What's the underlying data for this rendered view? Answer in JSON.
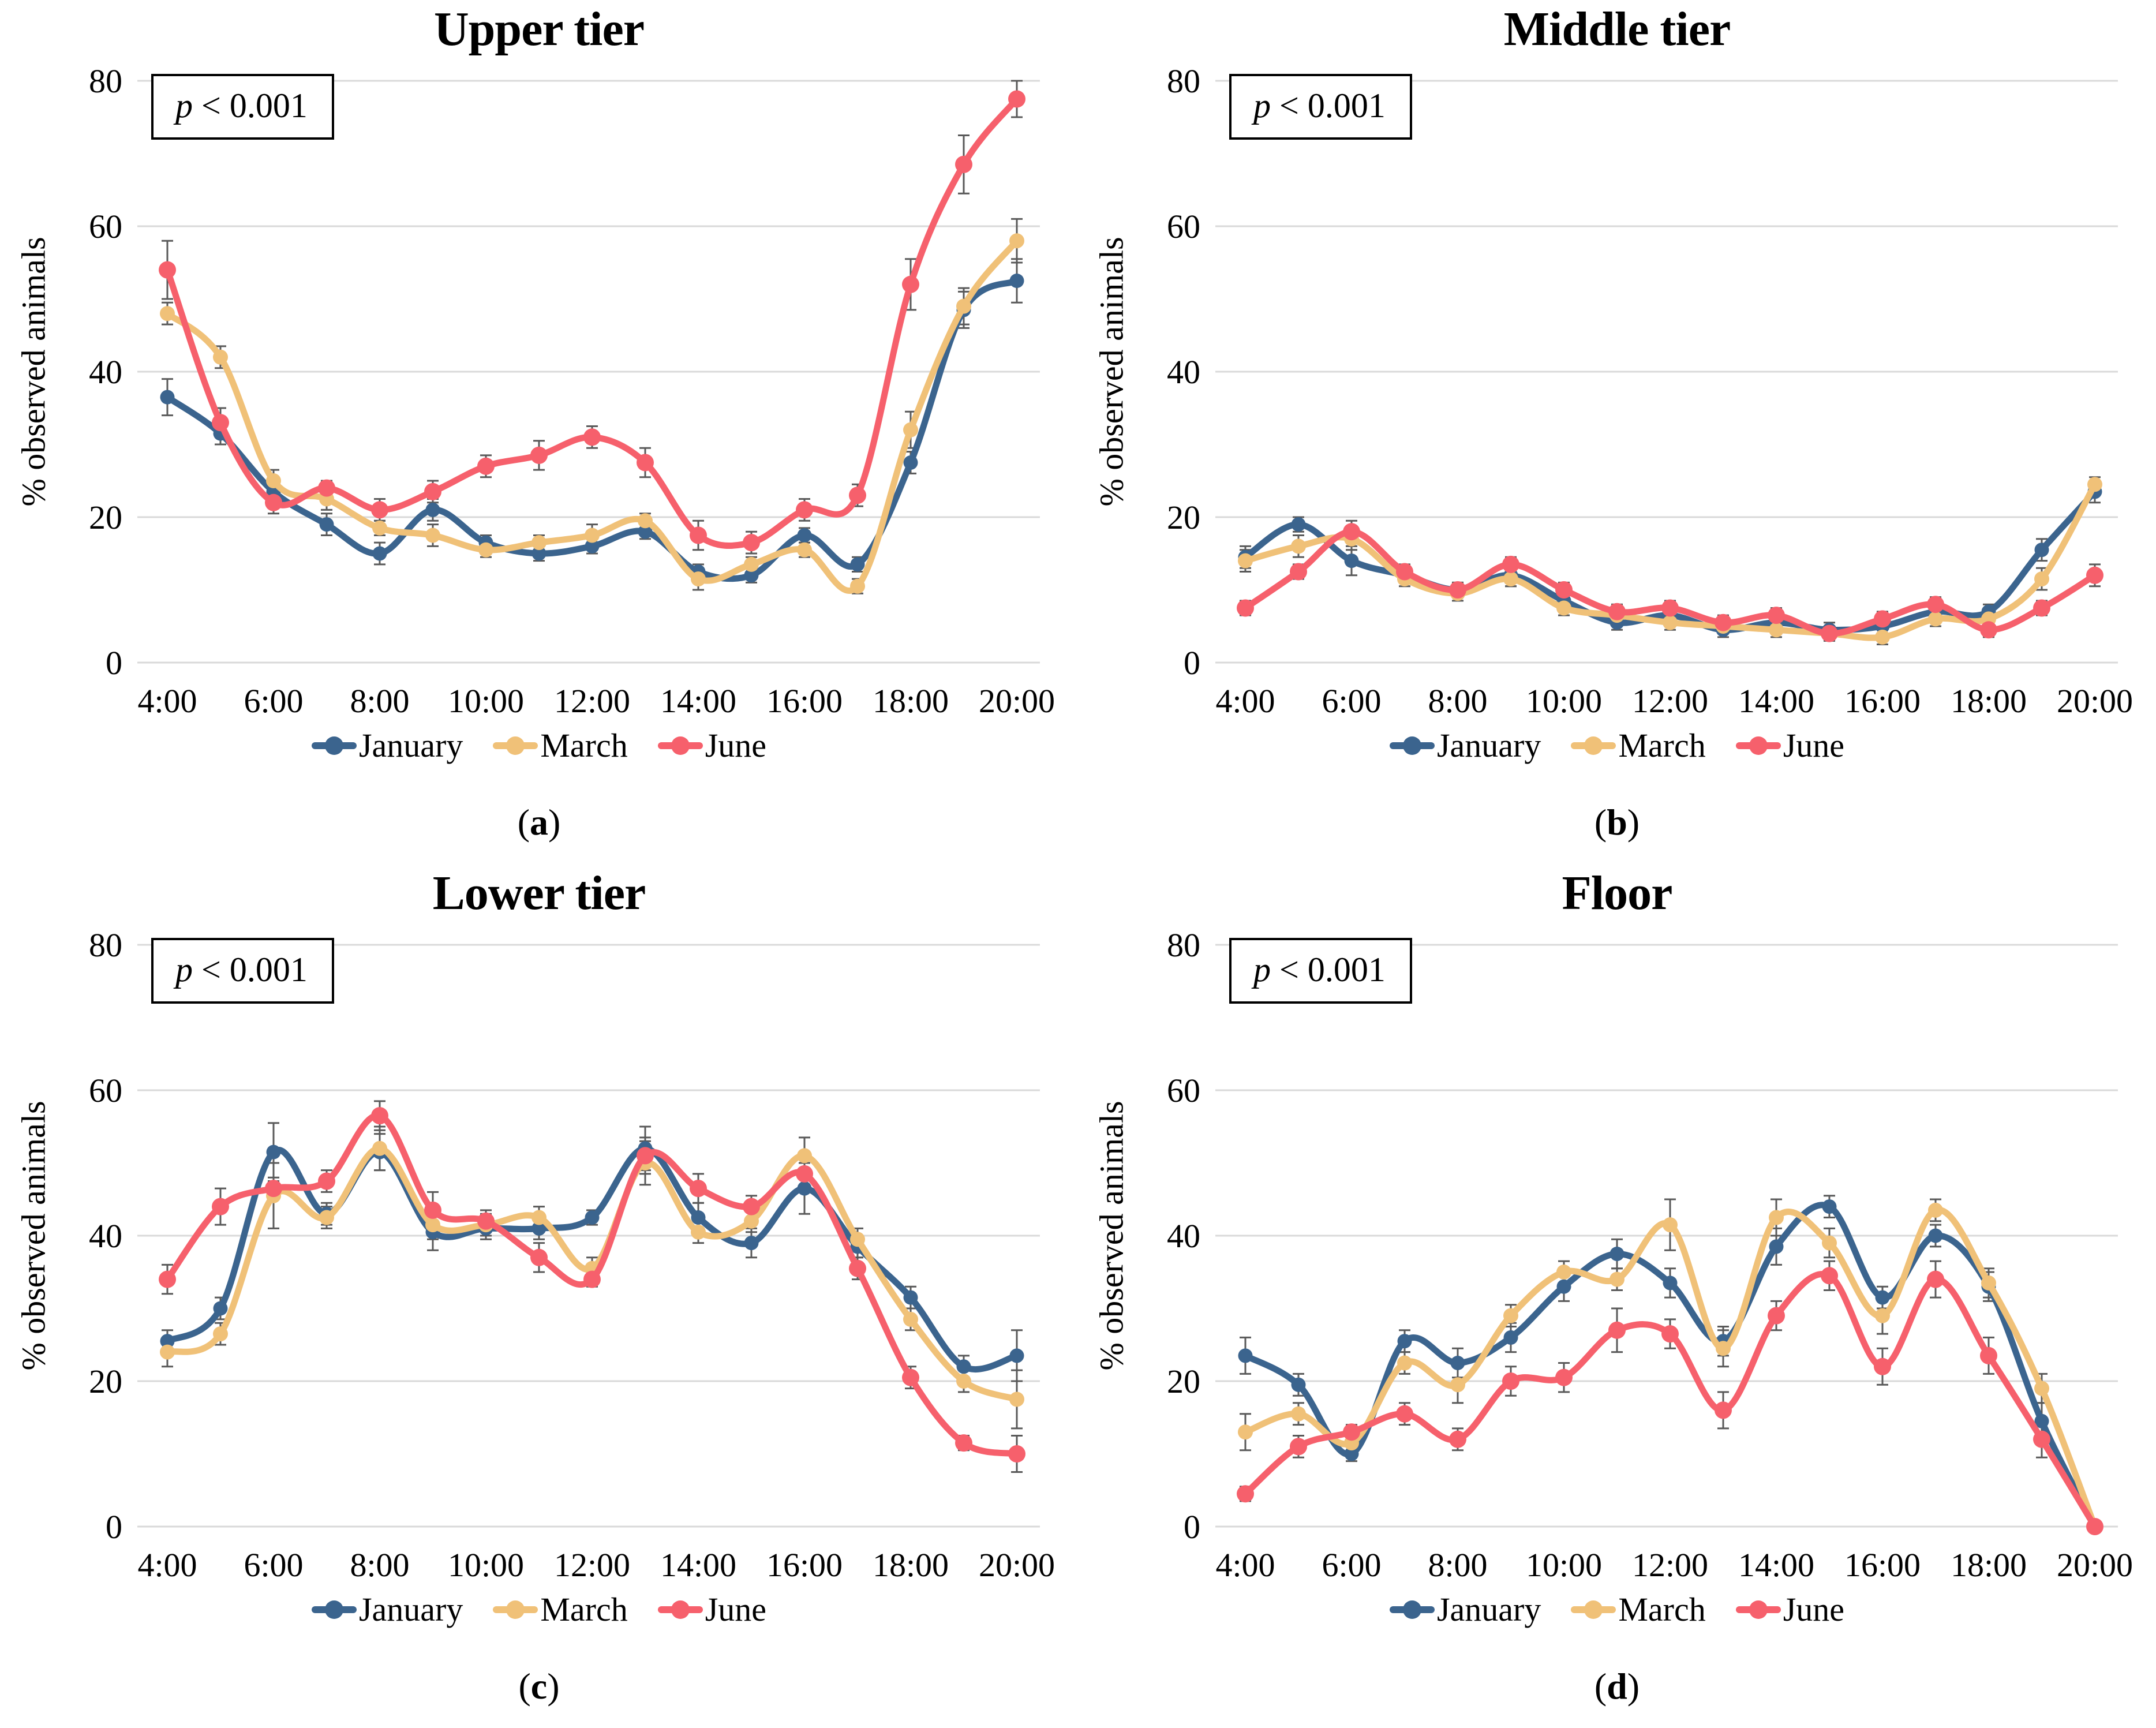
{
  "styles": {
    "background": "#ffffff",
    "grid_color": "#d9d9d9",
    "error_bar_color": "#595959",
    "text_color": "#000000",
    "january_color": "#3B648E",
    "march_color": "#F0C178",
    "june_color": "#F6606C"
  },
  "chart_data": [
    {
      "id": "a",
      "type": "line",
      "title": "Upper tier",
      "caption_open": "(",
      "caption_letter": "a",
      "caption_close": ")",
      "p_symbol": "p",
      "p_rest": " < 0.001",
      "ylabel": "% observed animals",
      "xlabel": "",
      "ylim": [
        0,
        80
      ],
      "y_ticks": [
        0,
        20,
        40,
        60,
        80
      ],
      "x_tick_labels": [
        "4:00",
        "6:00",
        "8:00",
        "10:00",
        "12:00",
        "14:00",
        "16:00",
        "18:00",
        "20:00"
      ],
      "hours": [
        4,
        5,
        6,
        7,
        8,
        9,
        10,
        11,
        12,
        13,
        14,
        15,
        16,
        17,
        18,
        19,
        20
      ],
      "grid": true,
      "legend_position": "bottom",
      "smooth": true,
      "series": [
        {
          "name": "January",
          "color": "#3B648E",
          "values": [
            36.5,
            31.5,
            23.5,
            19,
            15,
            21,
            16.5,
            15,
            16,
            18,
            12.5,
            12,
            17.5,
            13.5,
            27.5,
            48.5,
            52.5
          ],
          "errors": [
            2.5,
            1.5,
            1,
            1.5,
            1.5,
            1.5,
            1,
            1,
            1,
            1,
            1,
            1,
            1,
            1,
            1.5,
            2.5,
            3
          ]
        },
        {
          "name": "March",
          "color": "#F0C178",
          "values": [
            48,
            42,
            25,
            22.5,
            18.5,
            17.5,
            15.5,
            16.5,
            17.5,
            19.5,
            11.5,
            13.5,
            15.5,
            10.5,
            32,
            49,
            58
          ],
          "errors": [
            1.5,
            1.5,
            1.5,
            1.5,
            1,
            1.5,
            1,
            1,
            1.5,
            1,
            1.5,
            1,
            1,
            1,
            2.5,
            2.5,
            3
          ]
        },
        {
          "name": "June",
          "color": "#F6606C",
          "values": [
            54,
            33,
            22,
            24,
            21,
            23.5,
            27,
            28.5,
            31,
            27.5,
            17.5,
            16.5,
            21,
            23,
            52,
            68.5,
            77.5
          ],
          "errors": [
            4,
            2,
            1.5,
            1,
            1.5,
            1.5,
            1.5,
            2,
            1.5,
            2,
            2,
            1.5,
            1.5,
            1.5,
            3.5,
            4,
            2.5
          ]
        }
      ]
    },
    {
      "id": "b",
      "type": "line",
      "title": "Middle tier",
      "caption_open": "(",
      "caption_letter": "b",
      "caption_close": ")",
      "p_symbol": "p",
      "p_rest": " < 0.001",
      "ylabel": "% observed animals",
      "xlabel": "",
      "ylim": [
        0,
        80
      ],
      "y_ticks": [
        0,
        20,
        40,
        60,
        80
      ],
      "x_tick_labels": [
        "4:00",
        "6:00",
        "8:00",
        "10:00",
        "12:00",
        "14:00",
        "16:00",
        "18:00",
        "20:00"
      ],
      "hours": [
        4,
        5,
        6,
        7,
        8,
        9,
        10,
        11,
        12,
        13,
        14,
        15,
        16,
        17,
        18,
        19,
        20
      ],
      "grid": true,
      "legend_position": "bottom",
      "smooth": true,
      "series": [
        {
          "name": "January",
          "color": "#3B648E",
          "values": [
            14.5,
            19,
            14,
            12,
            10,
            12,
            8.5,
            5.5,
            6.5,
            4.5,
            5.5,
            4.5,
            5,
            7,
            7,
            15.5,
            23.5
          ],
          "errors": [
            1.5,
            1,
            2,
            1,
            1,
            1.5,
            1,
            1,
            1,
            1,
            1,
            1,
            1,
            1,
            1,
            1.5,
            1.5
          ]
        },
        {
          "name": "March",
          "color": "#F0C178",
          "values": [
            14,
            16,
            17,
            11.5,
            9.5,
            11.5,
            7.5,
            6.5,
            5.5,
            5,
            4.5,
            4,
            3.5,
            6,
            6,
            11.5,
            24.5
          ],
          "errors": [
            1.5,
            1.5,
            1.5,
            1,
            1,
            1,
            1,
            1,
            1,
            1,
            1,
            1,
            1,
            1,
            1,
            1.5,
            1
          ]
        },
        {
          "name": "June",
          "color": "#F6606C",
          "values": [
            7.5,
            12.5,
            18,
            12.5,
            10,
            13.5,
            10,
            7,
            7.5,
            5.5,
            6.5,
            4,
            6,
            8,
            4.5,
            7.5,
            12
          ],
          "errors": [
            1,
            1,
            1.5,
            1,
            1,
            1,
            1,
            1,
            1,
            1,
            1,
            1,
            1,
            1,
            1,
            1,
            1.5
          ]
        }
      ]
    },
    {
      "id": "c",
      "type": "line",
      "title": "Lower tier",
      "caption_open": "(",
      "caption_letter": "c",
      "caption_close": ")",
      "p_symbol": "p",
      "p_rest": " < 0.001",
      "ylabel": "% observed animals",
      "xlabel": "",
      "ylim": [
        0,
        80
      ],
      "y_ticks": [
        0,
        20,
        40,
        60,
        80
      ],
      "x_tick_labels": [
        "4:00",
        "6:00",
        "8:00",
        "10:00",
        "12:00",
        "14:00",
        "16:00",
        "18:00",
        "20:00"
      ],
      "hours": [
        4,
        5,
        6,
        7,
        8,
        9,
        10,
        11,
        12,
        13,
        14,
        15,
        16,
        17,
        18,
        19,
        20
      ],
      "grid": true,
      "legend_position": "bottom",
      "smooth": true,
      "series": [
        {
          "name": "January",
          "color": "#3B648E",
          "values": [
            25.5,
            30,
            51.5,
            43,
            51.5,
            40.5,
            41,
            41,
            42.5,
            52,
            42.5,
            39,
            46.5,
            38.5,
            31.5,
            22,
            23.5
          ],
          "errors": [
            1.5,
            1.5,
            4,
            1.5,
            2.5,
            2.5,
            1.5,
            1.5,
            1,
            3,
            2,
            2,
            3.5,
            1.5,
            1.5,
            1.5,
            3.5
          ]
        },
        {
          "name": "March",
          "color": "#F0C178",
          "values": [
            24,
            26.5,
            45.5,
            42.5,
            52,
            41.5,
            41.5,
            42.5,
            35.5,
            50,
            40.5,
            42,
            51,
            39.5,
            28.5,
            20,
            17.5
          ],
          "errors": [
            2,
            1.5,
            4.5,
            1.5,
            3,
            2,
            1.5,
            1.5,
            1.5,
            3,
            1.5,
            1.5,
            2.5,
            1.5,
            1.5,
            1.5,
            4
          ]
        },
        {
          "name": "June",
          "color": "#F6606C",
          "values": [
            34,
            44,
            46.5,
            47.5,
            56.5,
            43.5,
            42,
            37,
            34,
            51,
            46.5,
            44,
            48.5,
            35.5,
            20.5,
            11.5,
            10
          ],
          "errors": [
            2,
            2.5,
            1.5,
            1.5,
            2,
            2.5,
            1.5,
            2,
            1,
            2.5,
            2,
            1.5,
            2.5,
            1.5,
            1.5,
            1,
            2.5
          ]
        }
      ]
    },
    {
      "id": "d",
      "type": "line",
      "title": "Floor",
      "caption_open": "(",
      "caption_letter": "d",
      "caption_close": ")",
      "p_symbol": "p",
      "p_rest": " < 0.001",
      "ylabel": "% observed animals",
      "xlabel": "",
      "ylim": [
        0,
        80
      ],
      "y_ticks": [
        0,
        20,
        40,
        60,
        80
      ],
      "x_tick_labels": [
        "4:00",
        "6:00",
        "8:00",
        "10:00",
        "12:00",
        "14:00",
        "16:00",
        "18:00",
        "20:00"
      ],
      "hours": [
        4,
        5,
        6,
        7,
        8,
        9,
        10,
        11,
        12,
        13,
        14,
        15,
        16,
        17,
        18,
        19,
        20
      ],
      "grid": true,
      "legend_position": "bottom",
      "smooth": true,
      "series": [
        {
          "name": "January",
          "color": "#3B648E",
          "values": [
            23.5,
            19.5,
            10,
            25.5,
            22.5,
            26,
            33,
            37.5,
            33.5,
            25.5,
            38.5,
            44,
            31.5,
            40,
            33,
            14.5,
            0
          ],
          "errors": [
            2.5,
            1.5,
            1,
            1.5,
            2,
            2,
            2,
            2,
            2,
            2,
            2.5,
            1.5,
            1.5,
            1.5,
            2,
            2.5,
            0
          ]
        },
        {
          "name": "March",
          "color": "#F0C178",
          "values": [
            13,
            15.5,
            11.5,
            22.5,
            19.5,
            29,
            35,
            34,
            41.5,
            24.5,
            42.5,
            39,
            29,
            43.5,
            33.5,
            19,
            0
          ],
          "errors": [
            2.5,
            1.5,
            1,
            1.5,
            2.5,
            1.5,
            1.5,
            1.5,
            3.5,
            2.5,
            2.5,
            2,
            2.5,
            1.5,
            2,
            2,
            0
          ]
        },
        {
          "name": "June",
          "color": "#F6606C",
          "values": [
            4.5,
            11,
            13,
            15.5,
            12,
            20,
            20.5,
            27,
            26.5,
            16,
            29,
            34.5,
            22,
            34,
            23.5,
            12,
            0
          ],
          "errors": [
            1,
            1.5,
            1,
            1.5,
            1.5,
            2,
            2,
            3,
            2,
            2.5,
            2,
            2,
            2.5,
            2.5,
            2.5,
            2.5,
            0
          ]
        }
      ]
    }
  ]
}
